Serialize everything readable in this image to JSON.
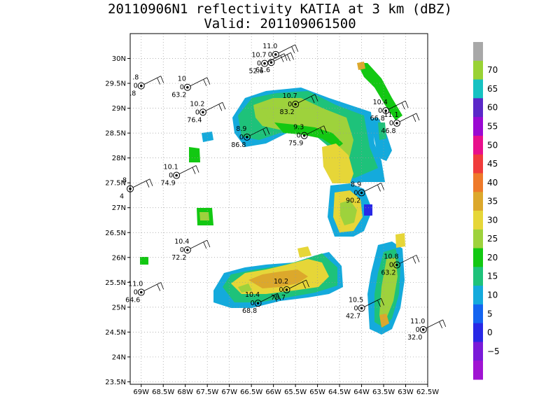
{
  "title": {
    "line1": "20110906N1 reflectivity KATIA at 3 km (dBZ)",
    "line2": "Valid: 201109061500"
  },
  "map": {
    "lon_range": [
      -69.25,
      -62.5
    ],
    "lat_range": [
      23.45,
      30.5
    ],
    "lat_ticks": [
      30,
      29.5,
      29,
      28.5,
      28,
      27.5,
      27,
      26.5,
      26,
      25.5,
      25,
      24.5,
      24,
      23.5
    ],
    "lat_labels": [
      "30N",
      "29.5N",
      "29N",
      "28.5N",
      "28N",
      "27.5N",
      "27N",
      "26.5N",
      "26N",
      "25.5N",
      "25N",
      "24.5N",
      "24N",
      "23.5N"
    ],
    "lon_ticks": [
      -69,
      -68.5,
      -68,
      -67.5,
      -67,
      -66.5,
      -66,
      -65.5,
      -65,
      -64.5,
      -64,
      -63.5,
      -63,
      -62.5
    ],
    "lon_labels": [
      "69W",
      "68.5W",
      "68W",
      "67.5W",
      "67W",
      "66.5W",
      "66W",
      "65.5W",
      "65W",
      "64.5W",
      "64W",
      "63.5W",
      "63W",
      "62.5W"
    ],
    "grid": "dotted"
  },
  "colorbar": {
    "labels": [
      "70",
      "65",
      "60",
      "55",
      "50",
      "45",
      "40",
      "35",
      "30",
      "25",
      "20",
      "15",
      "10",
      "5",
      "0",
      "−5"
    ],
    "colors": [
      "#a8a8a8",
      "#99d234",
      "#16c2c2",
      "#5a28c8",
      "#9a0ad2",
      "#e8108c",
      "#f03c3c",
      "#ee7a2a",
      "#dca82c",
      "#e6d638",
      "#9ed23c",
      "#12c812",
      "#1ec27a",
      "#14aadc",
      "#1464f0",
      "#2828e6",
      "#7a1ad8",
      "#a014d2"
    ]
  },
  "observations": [
    {
      "lon": -65.95,
      "lat": 30.08,
      "l1": "11.0",
      "l2": "0",
      "l3": ""
    },
    {
      "lon": -66.2,
      "lat": 29.9,
      "l1": "10.7",
      "l2": "0",
      "l3": "52.6"
    },
    {
      "lon": -66.05,
      "lat": 29.92,
      "l1": "",
      "l2": "",
      "l3": "61.6"
    },
    {
      "lon": -69.0,
      "lat": 29.45,
      "l1": ".8",
      "l2": "0",
      "l3": ".8"
    },
    {
      "lon": -67.95,
      "lat": 29.42,
      "l1": "10",
      "l2": "0",
      "l3": "63.2"
    },
    {
      "lon": -67.6,
      "lat": 28.92,
      "l1": "10.2",
      "l2": "0",
      "l3": "76.4"
    },
    {
      "lon": -65.5,
      "lat": 29.08,
      "l1": "10.7",
      "l2": "0",
      "l3": "83.2"
    },
    {
      "lon": -66.6,
      "lat": 28.42,
      "l1": "8.9",
      "l2": "0",
      "l3": "86.8"
    },
    {
      "lon": -65.3,
      "lat": 28.45,
      "l1": "9.3",
      "l2": "0",
      "l3": "75.9"
    },
    {
      "lon": -63.45,
      "lat": 28.95,
      "l1": "10.4",
      "l2": "0",
      "l3": "66.8"
    },
    {
      "lon": -63.2,
      "lat": 28.7,
      "l1": "11.1",
      "l2": "0",
      "l3": "46.8"
    },
    {
      "lon": -68.2,
      "lat": 27.65,
      "l1": "10.1",
      "l2": "0",
      "l3": "74.9"
    },
    {
      "lon": -69.25,
      "lat": 27.38,
      "l1": "8",
      "l2": "",
      "l3": "4"
    },
    {
      "lon": -64.0,
      "lat": 27.3,
      "l1": "8.9",
      "l2": "0",
      "l3": "90.2"
    },
    {
      "lon": -67.95,
      "lat": 26.15,
      "l1": "10.4",
      "l2": "0",
      "l3": "72.2"
    },
    {
      "lon": -69.0,
      "lat": 25.3,
      "l1": "11.0",
      "l2": "0",
      "l3": "64.6"
    },
    {
      "lon": -65.7,
      "lat": 25.35,
      "l1": "10.2",
      "l2": "0",
      "l3": "78.7"
    },
    {
      "lon": -66.35,
      "lat": 25.08,
      "l1": "10.4",
      "l2": "0",
      "l3": "68.8"
    },
    {
      "lon": -64.0,
      "lat": 24.98,
      "l1": "10.5",
      "l2": "0",
      "l3": "42.7"
    },
    {
      "lon": -63.2,
      "lat": 25.85,
      "l1": "10.8",
      "l2": "0",
      "l3": "63.2"
    },
    {
      "lon": -62.6,
      "lat": 24.55,
      "l1": "11.0",
      "l2": "0",
      "l3": "32.0"
    }
  ]
}
